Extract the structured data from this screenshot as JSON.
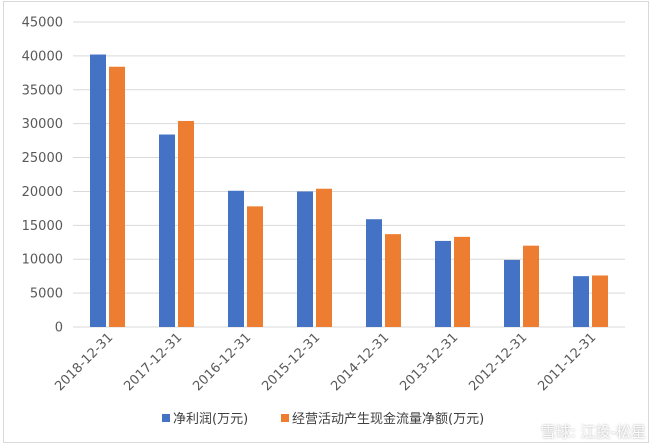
{
  "colors": {
    "net_profit": "#4472c4",
    "operating_cash_flow": "#ed7d31",
    "grid": "#d9d9d9",
    "text": "#595959"
  },
  "watermark": "雪球: 江投-松星",
  "chart_data": {
    "type": "bar",
    "categories": [
      "2018-12-31",
      "2017-12-31",
      "2016-12-31",
      "2015-12-31",
      "2014-12-31",
      "2013-12-31",
      "2012-12-31",
      "2011-12-31"
    ],
    "series": [
      {
        "name": "净利润(万元)",
        "values": [
          40200,
          28400,
          20100,
          20000,
          15900,
          12700,
          9900,
          7500
        ]
      },
      {
        "name": "经营活动产生现金流量净额(万元)",
        "values": [
          38400,
          30400,
          17800,
          20400,
          13700,
          13300,
          12000,
          7600
        ]
      }
    ],
    "title": "",
    "xlabel": "",
    "ylabel": "",
    "ylim": [
      0,
      45000
    ],
    "yticks": [
      "0",
      "5000",
      "10000",
      "15000",
      "20000",
      "25000",
      "30000",
      "35000",
      "40000",
      "45000"
    ],
    "grid": true,
    "legend": "bottom"
  }
}
